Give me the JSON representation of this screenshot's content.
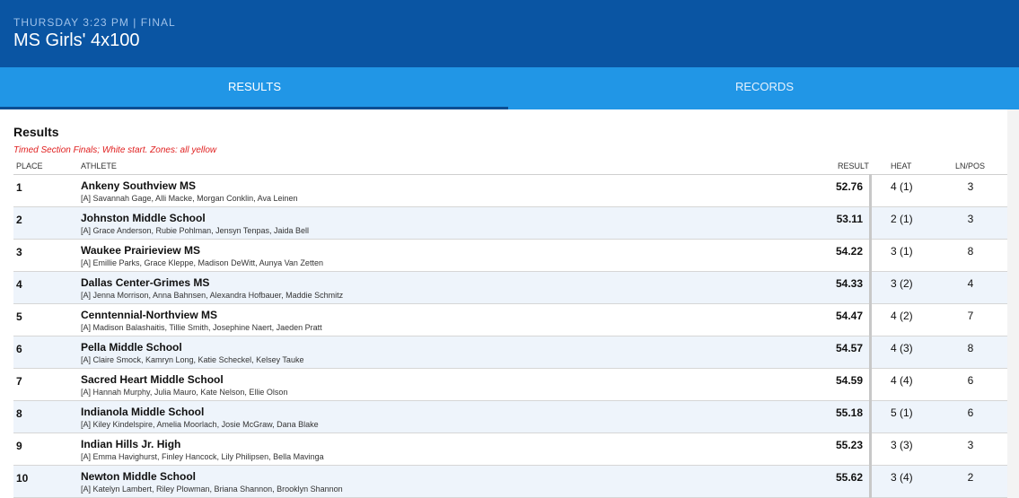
{
  "header": {
    "kicker": "THURSDAY 3:23 PM | FINAL",
    "title": "MS Girls' 4x100"
  },
  "tabs": [
    {
      "label": "RESULTS",
      "active": true
    },
    {
      "label": "RECORDS",
      "active": false
    }
  ],
  "section": {
    "title": "Results",
    "note": "Timed Section Finals; White start. Zones: all yellow"
  },
  "columns": {
    "place": "PLACE",
    "athlete": "ATHLETE",
    "result": "RESULT",
    "heat": "HEAT",
    "lane": "LN/POS"
  },
  "rows": [
    {
      "place": "1",
      "team": "Ankeny Southview MS",
      "athletes": "[A] Savannah Gage, Alli Macke, Morgan Conklin, Ava Leinen",
      "result": "52.76",
      "heat": "4 (1)",
      "lane": "3"
    },
    {
      "place": "2",
      "team": "Johnston Middle School",
      "athletes": "[A] Grace Anderson, Rubie Pohlman, Jensyn Tenpas, Jaida Bell",
      "result": "53.11",
      "heat": "2 (1)",
      "lane": "3"
    },
    {
      "place": "3",
      "team": "Waukee Prairieview MS",
      "athletes": "[A] Emillie Parks, Grace Kleppe, Madison DeWitt, Aunya Van Zetten",
      "result": "54.22",
      "heat": "3 (1)",
      "lane": "8"
    },
    {
      "place": "4",
      "team": "Dallas Center-Grimes MS",
      "athletes": "[A] Jenna Morrison, Anna Bahnsen, Alexandra Hofbauer, Maddie Schmitz",
      "result": "54.33",
      "heat": "3 (2)",
      "lane": "4"
    },
    {
      "place": "5",
      "team": "Cenntennial-Northview MS",
      "athletes": "[A] Madison Balashaitis, Tillie Smith, Josephine Naert, Jaeden Pratt",
      "result": "54.47",
      "heat": "4 (2)",
      "lane": "7"
    },
    {
      "place": "6",
      "team": "Pella Middle School",
      "athletes": "[A] Claire Smock, Kamryn Long, Katie Scheckel, Kelsey Tauke",
      "result": "54.57",
      "heat": "4 (3)",
      "lane": "8"
    },
    {
      "place": "7",
      "team": "Sacred Heart Middle School",
      "athletes": "[A] Hannah Murphy, Julia Mauro, Kate Nelson, Ellie Olson",
      "result": "54.59",
      "heat": "4 (4)",
      "lane": "6"
    },
    {
      "place": "8",
      "team": "Indianola Middle School",
      "athletes": "[A] Kiley Kindelspire, Amelia Moorlach, Josie McGraw, Dana Blake",
      "result": "55.18",
      "heat": "5 (1)",
      "lane": "6"
    },
    {
      "place": "9",
      "team": "Indian Hills Jr. High",
      "athletes": "[A] Emma Havighurst, Finley Hancock, Lily Philipsen, Bella Mavinga",
      "result": "55.23",
      "heat": "3 (3)",
      "lane": "3"
    },
    {
      "place": "10",
      "team": "Newton Middle School",
      "athletes": "[A] Katelyn Lambert, Riley Plowman, Briana Shannon, Brooklyn Shannon",
      "result": "55.62",
      "heat": "3 (4)",
      "lane": "2"
    }
  ]
}
